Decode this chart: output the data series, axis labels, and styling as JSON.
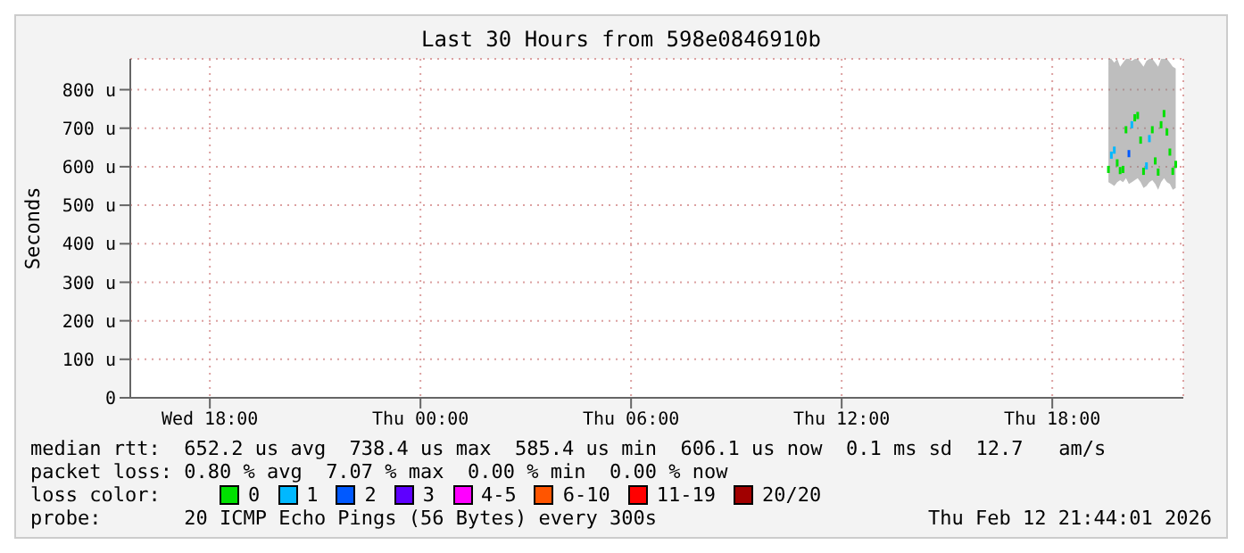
{
  "chart_data": {
    "type": "scatter",
    "title": "Last 30 Hours from 598e0846910b",
    "ylabel": "Seconds",
    "x": [
      "2026-02-12T19:36",
      "2026-02-12T19:41",
      "2026-02-12T19:46",
      "2026-02-12T19:51",
      "2026-02-12T19:56",
      "2026-02-12T20:01",
      "2026-02-12T20:06",
      "2026-02-12T20:11",
      "2026-02-12T20:16",
      "2026-02-12T20:21",
      "2026-02-12T20:26",
      "2026-02-12T20:31",
      "2026-02-12T20:36",
      "2026-02-12T20:41",
      "2026-02-12T20:46",
      "2026-02-12T20:51",
      "2026-02-12T20:56",
      "2026-02-12T21:01",
      "2026-02-12T21:06",
      "2026-02-12T21:11",
      "2026-02-12T21:16",
      "2026-02-12T21:21",
      "2026-02-12T21:26",
      "2026-02-12T21:31"
    ],
    "series": [
      {
        "name": "0",
        "color": "#00e000",
        "values": [
          593,
          null,
          null,
          610,
          590,
          593,
          696,
          null,
          null,
          727,
          733,
          669,
          588,
          null,
          null,
          696,
          615,
          586,
          709,
          738,
          690,
          638,
          588,
          606
        ],
        "lower": [
          560,
          555,
          550,
          560,
          565,
          560,
          570,
          555,
          560,
          565,
          570,
          560,
          545,
          550,
          560,
          565,
          555,
          540,
          560,
          570,
          560,
          555,
          540,
          545
        ],
        "upper": [
          880,
          880,
          870,
          880,
          860,
          870,
          880,
          880,
          875,
          880,
          880,
          870,
          860,
          875,
          880,
          880,
          870,
          860,
          880,
          880,
          880,
          870,
          860,
          855
        ]
      },
      {
        "name": "1",
        "color": "#00b8ff",
        "values": [
          null,
          630,
          643,
          null,
          null,
          null,
          null,
          null,
          709,
          null,
          null,
          null,
          null,
          602,
          673,
          null,
          null,
          null,
          null,
          null,
          null,
          null,
          null,
          null
        ]
      },
      {
        "name": "2",
        "color": "#0059ff",
        "values": [
          null,
          null,
          null,
          null,
          null,
          null,
          null,
          634,
          null,
          null,
          null,
          null,
          null,
          null,
          null,
          null,
          null,
          null,
          null,
          null,
          null,
          null,
          null,
          null
        ]
      },
      {
        "name": "3",
        "color": "#5e00ff",
        "values": [
          null,
          null,
          null,
          null,
          null,
          null,
          null,
          null,
          null,
          null,
          null,
          null,
          null,
          null,
          null,
          null,
          null,
          null,
          null,
          null,
          null,
          null,
          null,
          null
        ]
      },
      {
        "name": "4-5",
        "color": "#ff00ff",
        "values": [
          null,
          null,
          null,
          null,
          null,
          null,
          null,
          null,
          null,
          null,
          null,
          null,
          null,
          null,
          null,
          null,
          null,
          null,
          null,
          null,
          null,
          null,
          null,
          null
        ]
      },
      {
        "name": "6-10",
        "color": "#ff5500",
        "values": [
          null,
          null,
          null,
          null,
          null,
          null,
          null,
          null,
          null,
          null,
          null,
          null,
          null,
          null,
          null,
          null,
          null,
          null,
          null,
          null,
          null,
          null,
          null,
          null
        ]
      },
      {
        "name": "11-19",
        "color": "#ff0000",
        "values": [
          null,
          null,
          null,
          null,
          null,
          null,
          null,
          null,
          null,
          null,
          null,
          null,
          null,
          null,
          null,
          null,
          null,
          null,
          null,
          null,
          null,
          null,
          null,
          null
        ]
      },
      {
        "name": "20/20",
        "color": "#a10000",
        "values": [
          null,
          null,
          null,
          null,
          null,
          null,
          null,
          null,
          null,
          null,
          null,
          null,
          null,
          null,
          null,
          null,
          null,
          null,
          null,
          null,
          null,
          null,
          null,
          null
        ]
      }
    ],
    "xlim": [
      "2026-02-11T15:44",
      "2026-02-12T21:44"
    ],
    "xticks": [
      {
        "value": "2026-02-11T18:00",
        "label": "Wed 18:00"
      },
      {
        "value": "2026-02-12T00:00",
        "label": "Thu 00:00"
      },
      {
        "value": "2026-02-12T06:00",
        "label": "Thu 06:00"
      },
      {
        "value": "2026-02-12T12:00",
        "label": "Thu 12:00"
      },
      {
        "value": "2026-02-12T18:00",
        "label": "Thu 18:00"
      }
    ],
    "ylim": [
      0,
      880
    ],
    "yticks": [
      0,
      {
        "value": 100,
        "label": "100 u"
      },
      {
        "value": 200,
        "label": "200 u"
      },
      {
        "value": 300,
        "label": "300 u"
      },
      {
        "value": 400,
        "label": "400 u"
      },
      {
        "value": 500,
        "label": "500 u"
      },
      {
        "value": 600,
        "label": "600 u"
      },
      {
        "value": 700,
        "label": "700 u"
      },
      {
        "value": 800,
        "label": "800 u"
      }
    ],
    "grid": true,
    "marker": "square",
    "legend": "bottom",
    "legend_title": "loss color:",
    "annotations": [
      "median rtt:  652.2 us avg  738.4 us max  585.4 us min  606.1 us now  0.1 ms sd  12.7   am/s",
      "packet loss: 0.80 % avg  7.07 % max  0.00 % min  0.00 % now",
      "probe:       20 ICMP Echo Pings (56 Bytes) every 300s",
      "Thu Feb 12 21:44:01 2026"
    ]
  }
}
